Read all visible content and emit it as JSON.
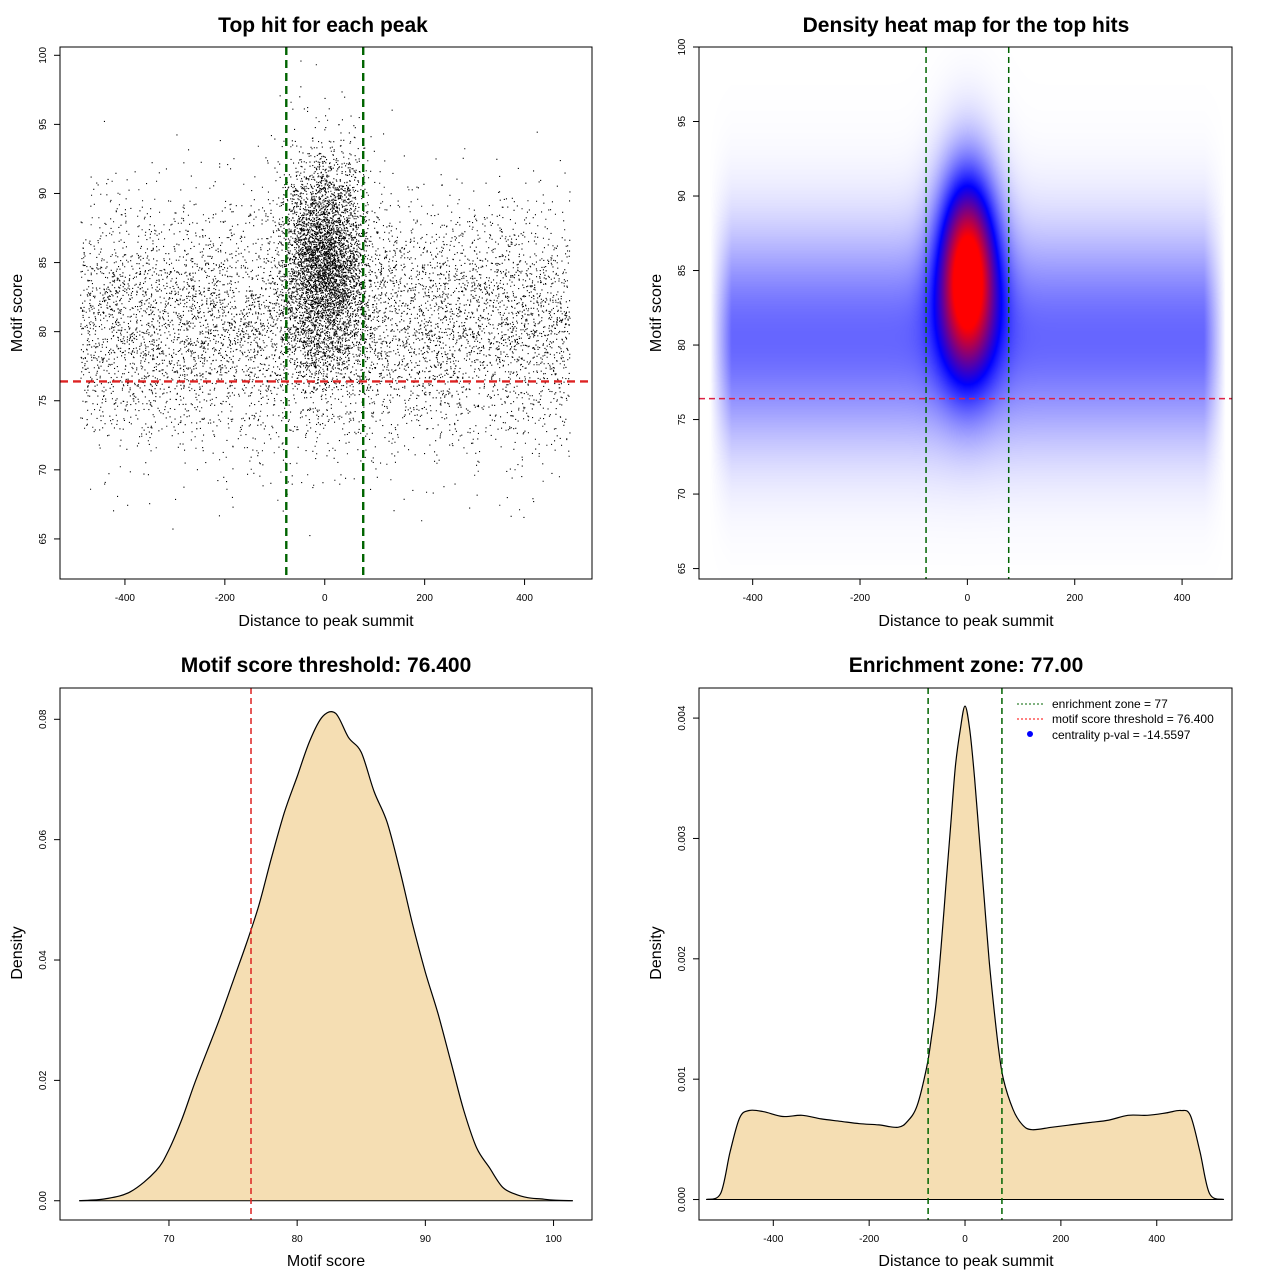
{
  "chart_data": [
    {
      "type": "scatter",
      "title": "Top hit for each peak",
      "xlabel": "Distance to peak summit",
      "ylabel": "Motif score",
      "xlim": [
        -530,
        535
      ],
      "ylim": [
        62.1,
        100.6
      ],
      "xticks": [
        "-400",
        "-200",
        "0",
        "200",
        "400"
      ],
      "yticks": [
        "65",
        "70",
        "75",
        "80",
        "85",
        "90",
        "95",
        "100"
      ],
      "hlines": [
        {
          "y": 76.4,
          "color": "#dd2222",
          "style": "dashed"
        }
      ],
      "vlines": [
        {
          "x": -77,
          "color": "#006400",
          "style": "dashed"
        },
        {
          "x": 77,
          "color": "#006400",
          "style": "dashed"
        }
      ],
      "point_color": "#000000",
      "distribution": {
        "background": {
          "x_range": [
            -490,
            490
          ],
          "score_mean": 80.5,
          "score_sd": 4.3
        },
        "central": {
          "x_mean": 0,
          "x_sd": 42,
          "score_mean": 85.0,
          "score_sd": 3.8
        }
      }
    },
    {
      "type": "heatmap",
      "title": "Density heat map for the top hits",
      "xlabel": "Distance to peak summit",
      "ylabel": "Motif score",
      "xlim": [
        -500,
        493
      ],
      "ylim": [
        64.3,
        100.0
      ],
      "xticks": [
        "-400",
        "-200",
        "0",
        "200",
        "400"
      ],
      "yticks": [
        "65",
        "70",
        "75",
        "80",
        "85",
        "90",
        "95",
        "100"
      ],
      "hlines": [
        {
          "y": 76.4,
          "color": "#dd2244",
          "style": "dashed"
        }
      ],
      "vlines": [
        {
          "x": -77,
          "color": "#006400",
          "style": "dashed"
        },
        {
          "x": 77,
          "color": "#006400",
          "style": "dashed"
        }
      ],
      "colormap": [
        "#ffffff",
        "#0000ff",
        "#ff0000"
      ],
      "peak": {
        "x": 0,
        "y": 85
      }
    },
    {
      "type": "area",
      "title": "Motif score threshold: 76.400",
      "xlabel": "Motif score",
      "ylabel": "Density",
      "xlim": [
        61.5,
        103
      ],
      "ylim": [
        -0.0032,
        0.0852
      ],
      "xticks": [
        "70",
        "80",
        "90",
        "100"
      ],
      "yticks": [
        "0.00",
        "0.02",
        "0.04",
        "0.06",
        "0.08"
      ],
      "fill": "#f5deb3",
      "vlines": [
        {
          "x": 76.4,
          "color": "#dd2222",
          "style": "dashed"
        }
      ],
      "x": [
        63,
        65,
        67,
        69,
        70,
        71,
        72,
        73,
        74,
        75,
        76,
        77,
        78,
        79,
        80,
        81,
        82,
        83,
        84,
        85,
        86,
        87,
        88,
        89,
        90,
        91,
        92,
        93,
        94,
        95,
        96,
        97,
        98,
        99,
        100,
        101.5
      ],
      "y": [
        0.0,
        0.0003,
        0.0015,
        0.005,
        0.0085,
        0.0135,
        0.0195,
        0.025,
        0.0305,
        0.0365,
        0.0425,
        0.049,
        0.057,
        0.0645,
        0.0705,
        0.0765,
        0.0805,
        0.081,
        0.077,
        0.0745,
        0.068,
        0.063,
        0.055,
        0.046,
        0.038,
        0.031,
        0.023,
        0.015,
        0.0088,
        0.0055,
        0.0023,
        0.0011,
        0.0005,
        0.0003,
        0.0001,
        0.0
      ]
    },
    {
      "type": "area",
      "title": "Enrichment zone: 77.00",
      "xlabel": "Distance to peak summit",
      "ylabel": "Density",
      "xlim": [
        -555,
        557
      ],
      "ylim": [
        -0.00017,
        0.00425
      ],
      "xticks": [
        "-400",
        "-200",
        "0",
        "200",
        "400"
      ],
      "yticks": [
        "0.000",
        "0.001",
        "0.002",
        "0.003",
        "0.004"
      ],
      "fill": "#f5deb3",
      "vlines": [
        {
          "x": -77,
          "color": "#006400",
          "style": "dashed"
        },
        {
          "x": 77,
          "color": "#006400",
          "style": "dashed"
        }
      ],
      "x": [
        -540,
        -510,
        -490,
        -470,
        -450,
        -420,
        -380,
        -340,
        -300,
        -260,
        -220,
        -180,
        -140,
        -120,
        -100,
        -80,
        -70,
        -60,
        -50,
        -40,
        -30,
        -20,
        -10,
        0,
        10,
        20,
        30,
        40,
        50,
        60,
        70,
        80,
        100,
        120,
        140,
        180,
        220,
        260,
        300,
        340,
        380,
        420,
        450,
        470,
        490,
        510,
        540
      ],
      "y": [
        0.0,
        5e-05,
        0.0004,
        0.00068,
        0.00074,
        0.00073,
        0.00069,
        0.0007,
        0.00067,
        0.00065,
        0.00063,
        0.00062,
        0.0006,
        0.00065,
        0.00078,
        0.0011,
        0.00135,
        0.00165,
        0.0021,
        0.0026,
        0.0031,
        0.0036,
        0.0039,
        0.0041,
        0.0039,
        0.0035,
        0.003,
        0.0025,
        0.002,
        0.0016,
        0.00125,
        0.001,
        0.00075,
        0.00062,
        0.00058,
        0.0006,
        0.00062,
        0.00064,
        0.00066,
        0.0007,
        0.0007,
        0.00072,
        0.00074,
        0.0007,
        0.0004,
        5e-05,
        0.0
      ],
      "legend": {
        "position": "top-right",
        "items": [
          {
            "label": "enrichment zone = 77",
            "color": "#006400",
            "symbol": "dotted-line"
          },
          {
            "label": "motif score threshold = 76.400",
            "color": "#ff0000",
            "symbol": "dotted-line"
          },
          {
            "label": "centrality p-val = -14.5597",
            "color": "#0000ff",
            "symbol": "dot"
          }
        ]
      }
    }
  ]
}
